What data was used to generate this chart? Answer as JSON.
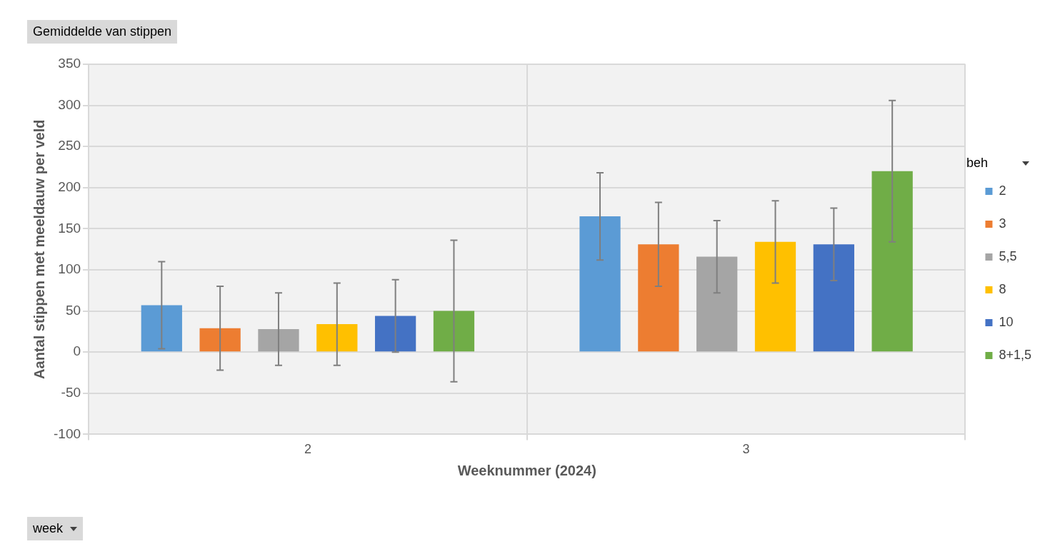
{
  "chart_data": {
    "type": "bar",
    "title": "Gemiddelde van stippen",
    "xlabel": "Weeknummer (2024)",
    "ylabel": "Aantal stippen met meeldauw per veld",
    "legend_title": "beh",
    "categories": [
      "2",
      "3"
    ],
    "series": [
      {
        "name": "2",
        "color": "#5b9bd5",
        "values": [
          57,
          165
        ],
        "errors": [
          53,
          53
        ]
      },
      {
        "name": "3",
        "color": "#ed7d31",
        "values": [
          29,
          131
        ],
        "errors": [
          51,
          51
        ]
      },
      {
        "name": "5,5",
        "color": "#a5a5a5",
        "values": [
          28,
          116
        ],
        "errors": [
          44,
          44
        ]
      },
      {
        "name": "8",
        "color": "#ffc000",
        "values": [
          34,
          134
        ],
        "errors": [
          50,
          50
        ]
      },
      {
        "name": "10",
        "color": "#4472c4",
        "values": [
          44,
          131
        ],
        "errors": [
          44,
          44
        ]
      },
      {
        "name": "8+1,5",
        "color": "#70ad47",
        "values": [
          50,
          220
        ],
        "errors": [
          86,
          86
        ]
      }
    ],
    "ylim": [
      -100,
      350
    ],
    "yticks": [
      -100,
      -50,
      0,
      50,
      100,
      150,
      200,
      250,
      300,
      350
    ],
    "grid": true,
    "legend": "right",
    "annotations": [
      "week"
    ]
  }
}
